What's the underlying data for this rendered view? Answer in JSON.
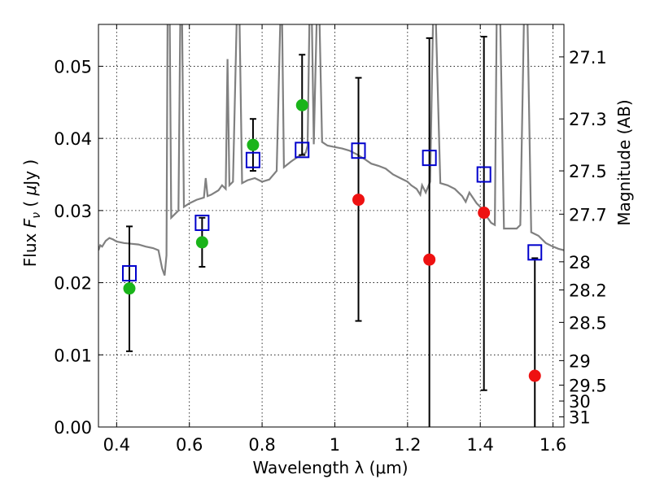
{
  "chart_data": {
    "type": "scatter",
    "xlabel": "Wavelength  λ (μm)",
    "ylabel": "Flux  F_ν  ( μJy )",
    "ylabel_parts": {
      "pre": "Flux  ",
      "sym": "F",
      "sub": "ν",
      "mid": "  ( ",
      "mu": "μ",
      "post": "Jy )"
    },
    "y2label": "Magnitude (AB)",
    "xlim": [
      0.35,
      1.63
    ],
    "ylim": [
      0.0,
      0.0558
    ],
    "grid": true,
    "xticks": [
      {
        "value": 0.4,
        "label": "0.4"
      },
      {
        "value": 0.6,
        "label": "0.6"
      },
      {
        "value": 0.8,
        "label": "0.8"
      },
      {
        "value": 1.0,
        "label": "1"
      },
      {
        "value": 1.2,
        "label": "1.2"
      },
      {
        "value": 1.4,
        "label": "1.4"
      },
      {
        "value": 1.6,
        "label": "1.6"
      }
    ],
    "yticks": [
      {
        "value": 0.0,
        "label": "0.00"
      },
      {
        "value": 0.01,
        "label": "0.01"
      },
      {
        "value": 0.02,
        "label": "0.02"
      },
      {
        "value": 0.03,
        "label": "0.03"
      },
      {
        "value": 0.04,
        "label": "0.04"
      },
      {
        "value": 0.05,
        "label": "0.05"
      }
    ],
    "magnitude_ticks": [
      {
        "value": 0.0513,
        "label": "27.1"
      },
      {
        "value": 0.0427,
        "label": "27.3"
      },
      {
        "value": 0.0355,
        "label": "27.5"
      },
      {
        "value": 0.0295,
        "label": "27.7"
      },
      {
        "value": 0.0229,
        "label": "28"
      },
      {
        "value": 0.019,
        "label": "28.2"
      },
      {
        "value": 0.0145,
        "label": "28.5"
      },
      {
        "value": 0.0092,
        "label": "29"
      },
      {
        "value": 0.0058,
        "label": "29.5"
      },
      {
        "value": 0.0036,
        "label": "30"
      },
      {
        "value": 0.0014,
        "label": "31"
      }
    ],
    "series": [
      {
        "kind": "errorbar",
        "color": "#000000",
        "points": [
          {
            "x": 0.435,
            "lo": 0.0105,
            "hi": 0.0278
          },
          {
            "x": 0.635,
            "lo": 0.0222,
            "hi": 0.029
          },
          {
            "x": 0.775,
            "lo": 0.0355,
            "hi": 0.0427
          },
          {
            "x": 0.91,
            "lo": 0.0377,
            "hi": 0.0516
          },
          {
            "x": 1.065,
            "lo": 0.0147,
            "hi": 0.0484
          },
          {
            "x": 1.26,
            "lo": 0.0,
            "hi": 0.0539
          },
          {
            "x": 1.41,
            "lo": 0.0051,
            "hi": 0.0541
          },
          {
            "x": 1.55,
            "lo": 0.0,
            "hi": 0.0234
          }
        ]
      },
      {
        "kind": "model_squares",
        "color": "#0000cc",
        "points": [
          {
            "x": 0.435,
            "y": 0.0213
          },
          {
            "x": 0.635,
            "y": 0.0283
          },
          {
            "x": 0.775,
            "y": 0.037
          },
          {
            "x": 0.91,
            "y": 0.0384
          },
          {
            "x": 1.065,
            "y": 0.0383
          },
          {
            "x": 1.26,
            "y": 0.0373
          },
          {
            "x": 1.41,
            "y": 0.035
          },
          {
            "x": 1.55,
            "y": 0.0242
          }
        ]
      },
      {
        "kind": "detections",
        "color": "#1ab41a",
        "points": [
          {
            "x": 0.435,
            "y": 0.0192
          },
          {
            "x": 0.635,
            "y": 0.0256
          },
          {
            "x": 0.775,
            "y": 0.0391
          },
          {
            "x": 0.91,
            "y": 0.0446
          }
        ]
      },
      {
        "kind": "upper_points",
        "color": "#ee1111",
        "points": [
          {
            "x": 1.065,
            "y": 0.0315
          },
          {
            "x": 1.26,
            "y": 0.0232
          },
          {
            "x": 1.41,
            "y": 0.0297
          },
          {
            "x": 1.55,
            "y": 0.0071
          }
        ]
      }
    ],
    "spectrum": {
      "color": "#808080",
      "points": [
        [
          0.35,
          0.0245
        ],
        [
          0.355,
          0.0252
        ],
        [
          0.36,
          0.025
        ],
        [
          0.37,
          0.0258
        ],
        [
          0.38,
          0.0262
        ],
        [
          0.39,
          0.026
        ],
        [
          0.4,
          0.0257
        ],
        [
          0.42,
          0.0255
        ],
        [
          0.44,
          0.0254
        ],
        [
          0.46,
          0.0253
        ],
        [
          0.48,
          0.025
        ],
        [
          0.5,
          0.0248
        ],
        [
          0.515,
          0.0245
        ],
        [
          0.525,
          0.022
        ],
        [
          0.532,
          0.021
        ],
        [
          0.537,
          0.0238
        ],
        [
          0.54,
          0.056
        ],
        [
          0.546,
          0.056
        ],
        [
          0.55,
          0.029
        ],
        [
          0.56,
          0.0295
        ],
        [
          0.57,
          0.03
        ],
        [
          0.575,
          0.056
        ],
        [
          0.58,
          0.056
        ],
        [
          0.585,
          0.0305
        ],
        [
          0.6,
          0.031
        ],
        [
          0.62,
          0.0315
        ],
        [
          0.64,
          0.0318
        ],
        [
          0.645,
          0.0345
        ],
        [
          0.65,
          0.032
        ],
        [
          0.66,
          0.0322
        ],
        [
          0.68,
          0.0328
        ],
        [
          0.69,
          0.0335
        ],
        [
          0.7,
          0.033
        ],
        [
          0.705,
          0.051
        ],
        [
          0.71,
          0.0335
        ],
        [
          0.72,
          0.034
        ],
        [
          0.73,
          0.056
        ],
        [
          0.738,
          0.056
        ],
        [
          0.745,
          0.0338
        ],
        [
          0.76,
          0.0342
        ],
        [
          0.78,
          0.0345
        ],
        [
          0.8,
          0.034
        ],
        [
          0.82,
          0.0343
        ],
        [
          0.84,
          0.0355
        ],
        [
          0.85,
          0.056
        ],
        [
          0.855,
          0.056
        ],
        [
          0.86,
          0.036
        ],
        [
          0.88,
          0.0368
        ],
        [
          0.9,
          0.0375
        ],
        [
          0.92,
          0.038
        ],
        [
          0.925,
          0.039
        ],
        [
          0.93,
          0.056
        ],
        [
          0.937,
          0.056
        ],
        [
          0.942,
          0.0392
        ],
        [
          0.95,
          0.056
        ],
        [
          0.958,
          0.056
        ],
        [
          0.965,
          0.0395
        ],
        [
          0.98,
          0.039
        ],
        [
          1.0,
          0.0388
        ],
        [
          1.02,
          0.0386
        ],
        [
          1.04,
          0.0383
        ],
        [
          1.06,
          0.0378
        ],
        [
          1.08,
          0.0372
        ],
        [
          1.1,
          0.0365
        ],
        [
          1.12,
          0.0362
        ],
        [
          1.14,
          0.0358
        ],
        [
          1.16,
          0.035
        ],
        [
          1.18,
          0.0345
        ],
        [
          1.2,
          0.034
        ],
        [
          1.21,
          0.0335
        ],
        [
          1.225,
          0.033
        ],
        [
          1.235,
          0.0322
        ],
        [
          1.24,
          0.0335
        ],
        [
          1.25,
          0.0325
        ],
        [
          1.262,
          0.034
        ],
        [
          1.27,
          0.056
        ],
        [
          1.278,
          0.056
        ],
        [
          1.29,
          0.0338
        ],
        [
          1.31,
          0.0335
        ],
        [
          1.33,
          0.033
        ],
        [
          1.35,
          0.032
        ],
        [
          1.36,
          0.0312
        ],
        [
          1.37,
          0.0325
        ],
        [
          1.39,
          0.031
        ],
        [
          1.4,
          0.0305
        ],
        [
          1.41,
          0.03
        ],
        [
          1.42,
          0.029
        ],
        [
          1.43,
          0.0283
        ],
        [
          1.44,
          0.028
        ],
        [
          1.445,
          0.056
        ],
        [
          1.455,
          0.056
        ],
        [
          1.465,
          0.0275
        ],
        [
          1.48,
          0.0275
        ],
        [
          1.5,
          0.0275
        ],
        [
          1.51,
          0.028
        ],
        [
          1.52,
          0.056
        ],
        [
          1.53,
          0.056
        ],
        [
          1.54,
          0.027
        ],
        [
          1.56,
          0.0265
        ],
        [
          1.58,
          0.0255
        ],
        [
          1.6,
          0.025
        ],
        [
          1.615,
          0.0247
        ],
        [
          1.63,
          0.0245
        ]
      ]
    }
  }
}
